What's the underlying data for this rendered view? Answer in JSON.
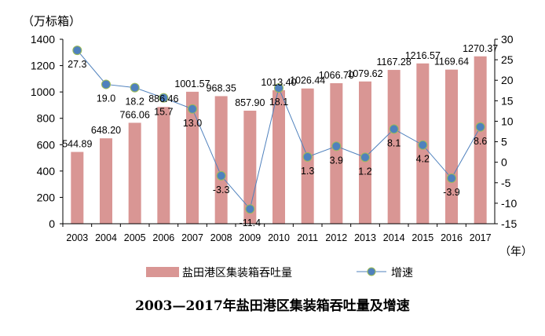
{
  "chart_data": {
    "type": "bar+line",
    "title": "2003—2017年盐田港区集装箱吞吐量及增速",
    "ylabel": "（万标箱）",
    "xlabel": "（年）",
    "categories": [
      "2003",
      "2004",
      "2005",
      "2006",
      "2007",
      "2008",
      "2009",
      "2010",
      "2011",
      "2012",
      "2013",
      "2014",
      "2015",
      "2016",
      "2017"
    ],
    "series": [
      {
        "name": "盐田港区集装箱吞吐量",
        "type": "bar",
        "axis": "left",
        "color": "#D99694",
        "values": [
          544.89,
          648.2,
          766.06,
          886.46,
          1001.57,
          968.35,
          857.9,
          1013.4,
          1026.44,
          1066.7,
          1079.62,
          1167.28,
          1216.57,
          1169.64,
          1270.37
        ],
        "labels": [
          "544.89",
          "648.20",
          "766.06",
          "886.46",
          "1001.57",
          "968.35",
          "857.90",
          "1013.40",
          "1026.44",
          "1066.70",
          "1079.62",
          "1167.28",
          "1216.57",
          "1169.64",
          "1270.37"
        ]
      },
      {
        "name": "增速",
        "type": "line",
        "axis": "right",
        "color": "#4F81BD",
        "marker_edge": "#9BBB59",
        "values": [
          27.3,
          19.0,
          18.2,
          15.7,
          13.0,
          -3.3,
          -11.4,
          18.1,
          1.3,
          3.9,
          1.2,
          8.1,
          4.2,
          -3.9,
          8.6
        ],
        "labels": [
          "27.3",
          "19.0",
          "18.2",
          "15.7",
          "13.0",
          "-3.3",
          "-11.4",
          "18.1",
          "1.3",
          "3.9",
          "1.2",
          "8.1",
          "4.2",
          "-3.9",
          "8.6"
        ]
      }
    ],
    "ylim": [
      0,
      1400
    ],
    "yticks": [
      "0",
      "200",
      "400",
      "600",
      "800",
      "1000",
      "1200",
      "1400"
    ],
    "y2lim": [
      -15,
      30
    ],
    "y2ticks": [
      "-15",
      "-10",
      "-5",
      "0",
      "5",
      "10",
      "15",
      "20",
      "25",
      "30"
    ],
    "legend": "bottom"
  }
}
